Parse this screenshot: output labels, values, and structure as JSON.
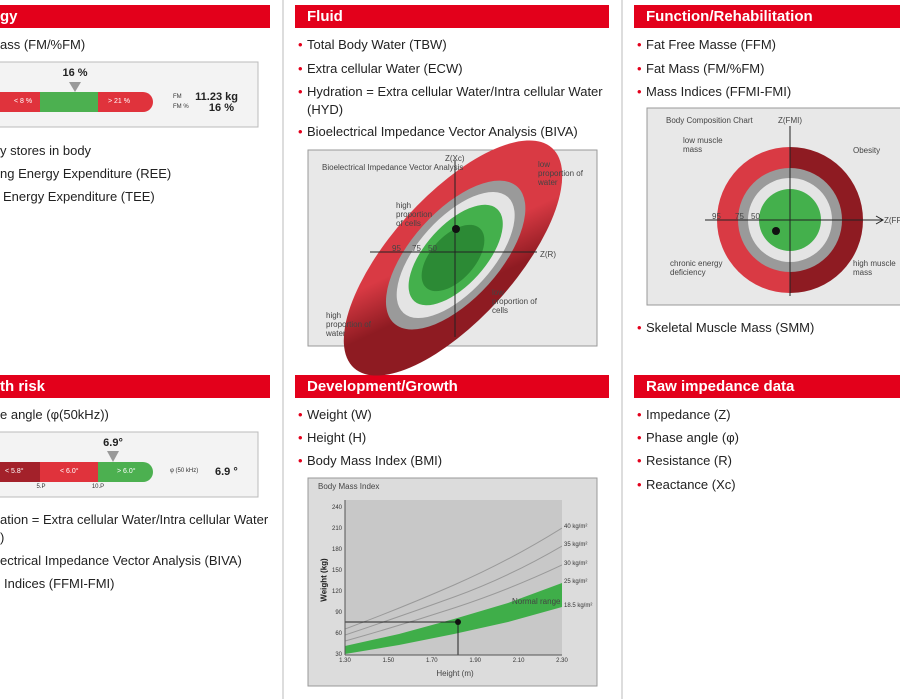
{
  "sections": [
    {
      "title": "gy",
      "items": [
        "ass (FM/%FM)",
        "y stores in body",
        "ng Energy Expenditure (REE)",
        "Energy Expenditure (TEE)"
      ],
      "widget": {
        "marker": "16 %",
        "segments": [
          "< 8 %",
          "> 21 %"
        ],
        "labels": [
          "FM",
          "FM %"
        ],
        "values": [
          "11.23 kg",
          "16 %"
        ]
      }
    },
    {
      "title": "Fluid",
      "items": [
        "Total Body Water (TBW)",
        "Extra cellular Water (ECW)",
        "Hydration = Extra cellular Water/Intra cellular Water (HYD)",
        "Bioelectrical Impedance Vector Analysis (BIVA)"
      ],
      "chart": {
        "title": "Bioelectrical Impedance Vector Analysis",
        "labels": [
          "Z(Xc)",
          "Z(R)",
          "low proportion of water",
          "high proportion of cells",
          "95",
          "75",
          "50",
          "low proportion of cells",
          "high proportion of water"
        ]
      }
    },
    {
      "title": "Function/Rehabilitation",
      "items": [
        "Fat Free Masse (FFM)",
        "Fat Mass (FM/%FM)",
        "Mass Indices (FFMI-FMI)",
        "Skeletal Muscle Mass (SMM)"
      ],
      "chart": {
        "title": "Body Composition Chart",
        "labels": [
          "Z(FMI)",
          "Z(FF",
          "low muscle mass",
          "Obesity",
          "95",
          "75",
          "50",
          "chronic energy deficiency",
          "high muscle mass"
        ]
      }
    },
    {
      "title": "th risk",
      "items": [
        "e angle (φ(50kHz))",
        "ation = Extra cellular Water/Intra cellular Water",
        ")",
        "ectrical Impedance Vector Analysis (BIVA)",
        "Indices (FFMI-FMI)"
      ],
      "widget": {
        "marker": "6.9°",
        "segments": [
          "< 5.8°",
          "< 6.0°",
          "> 6.0°"
        ],
        "percentiles": [
          "5.P",
          "10.P"
        ],
        "labels": [
          "φ (50 kHz)"
        ],
        "values": [
          "6.9 °"
        ]
      }
    },
    {
      "title": "Development/Growth",
      "items": [
        "Weight (W)",
        "Height (H)",
        "Body Mass Index (BMI)"
      ],
      "chart": {
        "title": "Body Mass Index",
        "y_label": "Weight (kg)",
        "x_label": "Height (m)",
        "yticks": [
          "240",
          "210",
          "180",
          "150",
          "120",
          "90",
          "60",
          "30"
        ],
        "xticks": [
          "1.30",
          "1.50",
          "1.70",
          "1.90",
          "2.10",
          "2.30"
        ],
        "curve_labels": [
          "40 kg/m²",
          "35 kg/m²",
          "30 kg/m²",
          "25 kg/m²",
          "18.5 kg/m²"
        ],
        "band_label": "Normal range"
      }
    },
    {
      "title": "Raw impedance data",
      "items": [
        "Impedance (Z)",
        "Phase angle (φ)",
        "Resistance (R)",
        "Reactance (Xc)"
      ]
    }
  ]
}
